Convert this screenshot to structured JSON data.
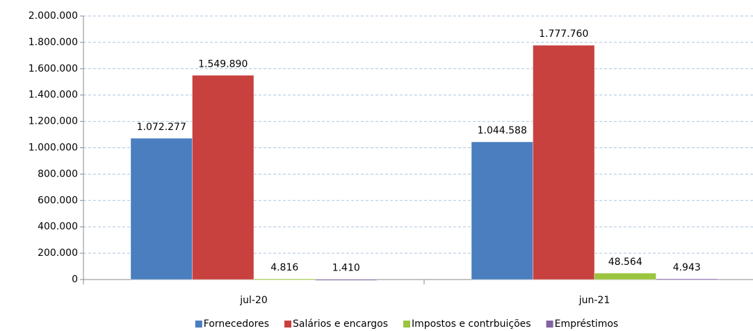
{
  "chart_data": {
    "type": "bar",
    "categories": [
      "jul-20",
      "jun-21"
    ],
    "series": [
      {
        "name": "Fornecedores",
        "color": "#4a7ebf",
        "values": [
          1072277,
          1044588
        ],
        "value_labels": [
          "1.072.277",
          "1.044.588"
        ]
      },
      {
        "name": "Salários e encargos",
        "color": "#c8413e",
        "values": [
          1549890,
          1777760
        ],
        "value_labels": [
          "1.549.890",
          "1.777.760"
        ]
      },
      {
        "name": "Impostos e contrbuições",
        "color": "#9bc43f",
        "values": [
          4816,
          48564
        ],
        "value_labels": [
          "4.816",
          "48.564"
        ]
      },
      {
        "name": "Empréstimos",
        "color": "#8064a2",
        "values": [
          1410,
          4943
        ],
        "value_labels": [
          "1.410",
          "4.943"
        ]
      }
    ],
    "ylim": [
      0,
      2000000
    ],
    "yticks": [
      0,
      {
        "value": 200000,
        "label": "200.000"
      },
      {
        "value": 400000,
        "label": "400.000"
      },
      {
        "value": 600000,
        "label": "600.000"
      },
      {
        "value": 800000,
        "label": "800.000"
      },
      {
        "value": 1000000,
        "label": "1.000.000"
      },
      {
        "value": 1200000,
        "label": "1.200.000"
      },
      {
        "value": 1400000,
        "label": "1.400.000"
      },
      {
        "value": 1600000,
        "label": "1.600.000"
      },
      {
        "value": 1800000,
        "label": "1.800.000"
      },
      {
        "value": 2000000,
        "label": "2.000.000"
      }
    ],
    "grid": true,
    "legend": "bottom"
  }
}
